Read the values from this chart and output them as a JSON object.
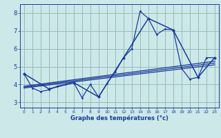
{
  "background_color": "#cce8e8",
  "grid_color": "#99bbbb",
  "line_color": "#1a3a9a",
  "xlabel": "Graphe des températures (°c)",
  "xlim": [
    -0.5,
    23.5
  ],
  "ylim": [
    2.7,
    8.5
  ],
  "yticks": [
    3,
    4,
    5,
    6,
    7,
    8
  ],
  "xticks": [
    0,
    1,
    2,
    3,
    4,
    5,
    6,
    7,
    8,
    9,
    10,
    11,
    12,
    13,
    14,
    15,
    16,
    17,
    18,
    19,
    20,
    21,
    22,
    23
  ],
  "series1_x": [
    0,
    1,
    2,
    3,
    4,
    5,
    6,
    7,
    8,
    9,
    10,
    11,
    12,
    13,
    14,
    15,
    16,
    17,
    18,
    19,
    20,
    21,
    22,
    23
  ],
  "series1_y": [
    4.6,
    3.8,
    3.6,
    3.7,
    3.9,
    4.0,
    4.1,
    3.25,
    4.0,
    3.3,
    4.05,
    4.7,
    5.5,
    6.0,
    8.1,
    7.7,
    6.8,
    7.1,
    7.05,
    4.9,
    4.3,
    4.4,
    5.5,
    5.5
  ],
  "series2_x": [
    0,
    3,
    6,
    9,
    12,
    15,
    18,
    21,
    23
  ],
  "series2_y": [
    4.6,
    3.75,
    4.1,
    3.3,
    5.5,
    7.7,
    7.05,
    4.4,
    5.5
  ],
  "line1_x": [
    0,
    23
  ],
  "line1_y": [
    3.8,
    5.1
  ],
  "line2_x": [
    0,
    23
  ],
  "line2_y": [
    3.85,
    5.2
  ],
  "line3_x": [
    0,
    23
  ],
  "line3_y": [
    3.9,
    5.3
  ]
}
